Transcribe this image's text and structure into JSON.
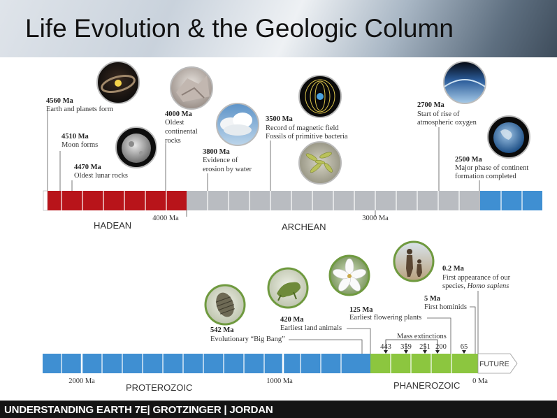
{
  "title": "Life Evolution & the Geologic Column",
  "footer": "UNDERSTANDING EARTH 7E| GROTZINGER | JORDAN",
  "top_events": [
    {
      "age": "4560 Ma",
      "lines": [
        "Earth and planets form"
      ]
    },
    {
      "age": "4510 Ma",
      "lines": [
        "Moon forms"
      ]
    },
    {
      "age": "4470 Ma",
      "lines": [
        "Oldest lunar rocks"
      ]
    },
    {
      "age": "4000 Ma",
      "lines": [
        "Oldest",
        "continental",
        "rocks"
      ]
    },
    {
      "age": "3800 Ma",
      "lines": [
        "Evidence of",
        "erosion by water"
      ]
    },
    {
      "age": "3500 Ma",
      "lines": [
        "Record of magnetic field",
        "Fossils of primitive bacteria"
      ]
    },
    {
      "age": "2700 Ma",
      "lines": [
        "Start of rise of",
        "atmospheric oxygen"
      ]
    },
    {
      "age": "2500 Ma",
      "lines": [
        "Major phase of continent",
        "formation completed"
      ]
    }
  ],
  "top_bar": {
    "ticks": [
      "4000 Ma",
      "3000 Ma"
    ],
    "eons": [
      "HADEAN",
      "ARCHEAN"
    ],
    "colors": {
      "hadean": "#b8141a",
      "archean": "#b9bcc1",
      "proterozoic": "#3f8fd2"
    }
  },
  "bottom_events": [
    {
      "age": "542 Ma",
      "lines": [
        "Evolutionary “Big Bang”"
      ]
    },
    {
      "age": "420 Ma",
      "lines": [
        "Earliest land animals"
      ]
    },
    {
      "age": "125 Ma",
      "lines": [
        "Earliest flowering plants"
      ]
    },
    {
      "age": "5 Ma",
      "lines": [
        "First hominids"
      ]
    },
    {
      "age": "0.2 Ma",
      "lines": [
        "First appearance of our",
        "species, "
      ],
      "italic": "Homo sapiens"
    }
  ],
  "mass_extinctions": {
    "label": "Mass extinctions",
    "values": [
      "443",
      "359",
      "251",
      "200",
      "65"
    ]
  },
  "bottom_bar": {
    "ticks": [
      "2000 Ma",
      "1000 Ma",
      "0 Ma"
    ],
    "eons": [
      "PROTEROZOIC",
      "PHANEROZOIC"
    ],
    "future": "FUTURE",
    "colors": {
      "proterozoic": "#3f8fd2",
      "phanerozoic": "#8cc63f"
    }
  },
  "icons": [
    "solar-system-icon",
    "moon-icon",
    "continental-rocks-icon",
    "cloud-icon",
    "magnetic-field-icon",
    "bacteria-icon",
    "atmosphere-icon",
    "earth-globe-icon",
    "trilobite-icon",
    "land-animal-icon",
    "flower-icon",
    "hominids-icon"
  ]
}
